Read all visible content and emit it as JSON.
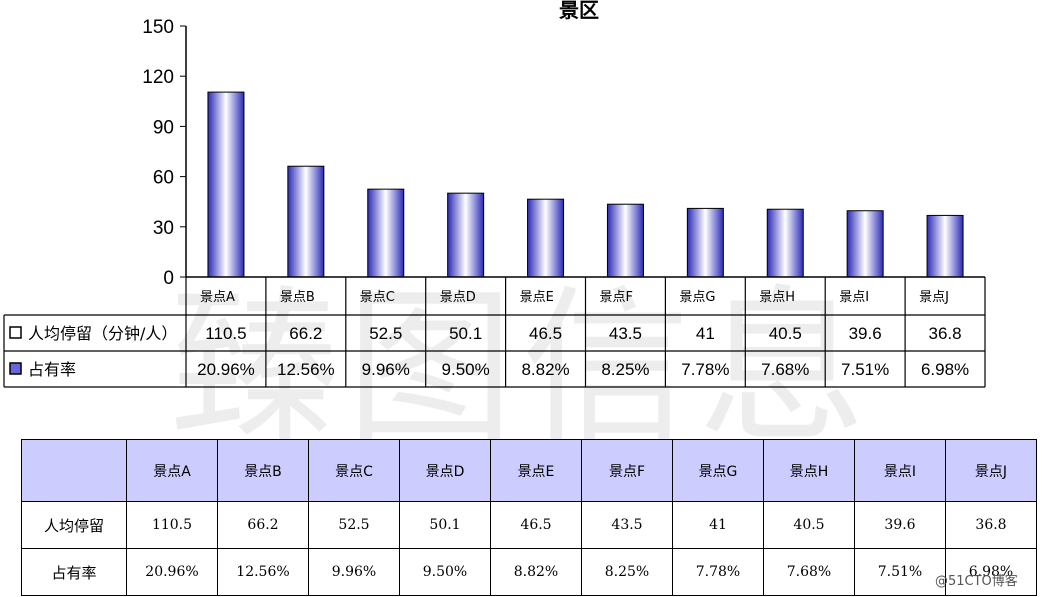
{
  "chart_data": {
    "type": "bar",
    "title": "景区",
    "categories": [
      "景点A",
      "景点B",
      "景点C",
      "景点D",
      "景点E",
      "景点F",
      "景点G",
      "景点H",
      "景点I",
      "景点J"
    ],
    "series": [
      {
        "name": "人均停留（分钟/人）",
        "values": [
          110.5,
          66.2,
          52.5,
          50.1,
          46.5,
          43.5,
          41,
          40.5,
          39.6,
          36.8
        ],
        "plotted": true
      },
      {
        "name": "占有率",
        "values": [
          "20.96%",
          "12.56%",
          "9.96%",
          "9.50%",
          "8.82%",
          "8.25%",
          "7.78%",
          "7.68%",
          "7.51%",
          "6.98%"
        ],
        "plotted": false
      }
    ],
    "ylim": [
      0,
      150
    ],
    "yticks": [
      0,
      30,
      60,
      90,
      120,
      150
    ],
    "bar_color": "#3333cc",
    "bar_highlight": "#ffffff",
    "grid": false
  },
  "watermark": "臻图信息",
  "table": {
    "columns": [
      "景点A",
      "景点B",
      "景点C",
      "景点D",
      "景点E",
      "景点F",
      "景点G",
      "景点H",
      "景点I",
      "景点J"
    ],
    "rows": [
      {
        "label": "人均停留",
        "values": [
          "110.5",
          "66.2",
          "52.5",
          "50.1",
          "46.5",
          "43.5",
          "41",
          "40.5",
          "39.6",
          "36.8"
        ]
      },
      {
        "label": "占有率",
        "values": [
          "20.96%",
          "12.56%",
          "9.96%",
          "9.50%",
          "8.82%",
          "8.25%",
          "7.78%",
          "7.68%",
          "7.51%",
          "6.98%"
        ]
      }
    ],
    "header_color": "#ccccff"
  },
  "credit": "@51CTO博客"
}
